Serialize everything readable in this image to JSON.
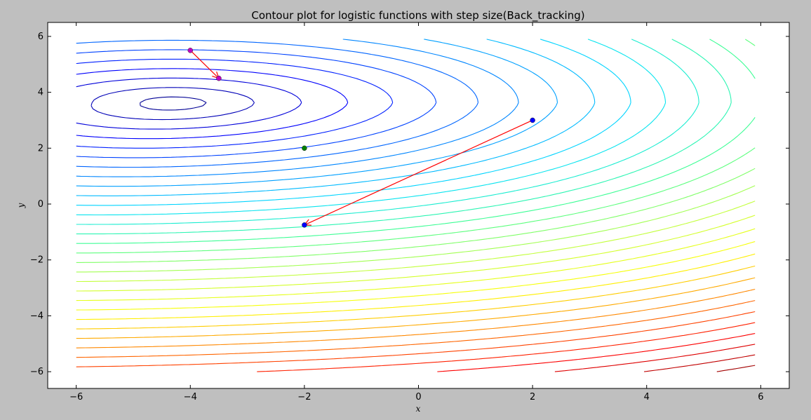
{
  "chart_data": {
    "type": "contour",
    "title": "Contour plot for logistic functions with step size(Back_tracking)",
    "xlabel": "x",
    "ylabel": "y",
    "xlim": [
      -6.5,
      6.5
    ],
    "ylim": [
      -6.6,
      6.5
    ],
    "xticks": [
      -6,
      -4,
      -2,
      0,
      2,
      4,
      6
    ],
    "yticks": [
      -6,
      -4,
      -2,
      0,
      2,
      4,
      6
    ],
    "xtick_labels": [
      "−6",
      "−4",
      "−2",
      "0",
      "2",
      "4",
      "6"
    ],
    "ytick_labels": [
      "−6",
      "−4",
      "−2",
      "0",
      "2",
      "4",
      "6"
    ],
    "grid": false,
    "colormap": "jet",
    "contour_domain": {
      "x": [
        -6,
        5.9
      ],
      "y": [
        -6,
        5.9
      ]
    },
    "contour_levels": 33,
    "center": [
      -4.3,
      3.6
    ],
    "contour_colors": [
      "#000080",
      "#0000ff",
      "#0080ff",
      "#00e0ff",
      "#40ff90",
      "#c0ff40",
      "#ffff00",
      "#ff8000",
      "#ff0000",
      "#900000"
    ],
    "points": [
      {
        "x": -4.0,
        "y": 5.5,
        "color": "#c000c0"
      },
      {
        "x": -3.5,
        "y": 4.5,
        "color": "#c000c0"
      },
      {
        "x": -2.0,
        "y": 2.0,
        "color": "#008000"
      },
      {
        "x": 2.0,
        "y": 3.0,
        "color": "#0000ff"
      },
      {
        "x": -2.0,
        "y": -0.75,
        "color": "#0000ff"
      }
    ],
    "arrows": [
      {
        "from": [
          -4.0,
          5.5
        ],
        "to": [
          -3.5,
          4.5
        ],
        "color": "#ff0000"
      },
      {
        "from": [
          2.0,
          3.0
        ],
        "to": [
          -2.0,
          -0.75
        ],
        "color": "#ff0000"
      }
    ]
  }
}
